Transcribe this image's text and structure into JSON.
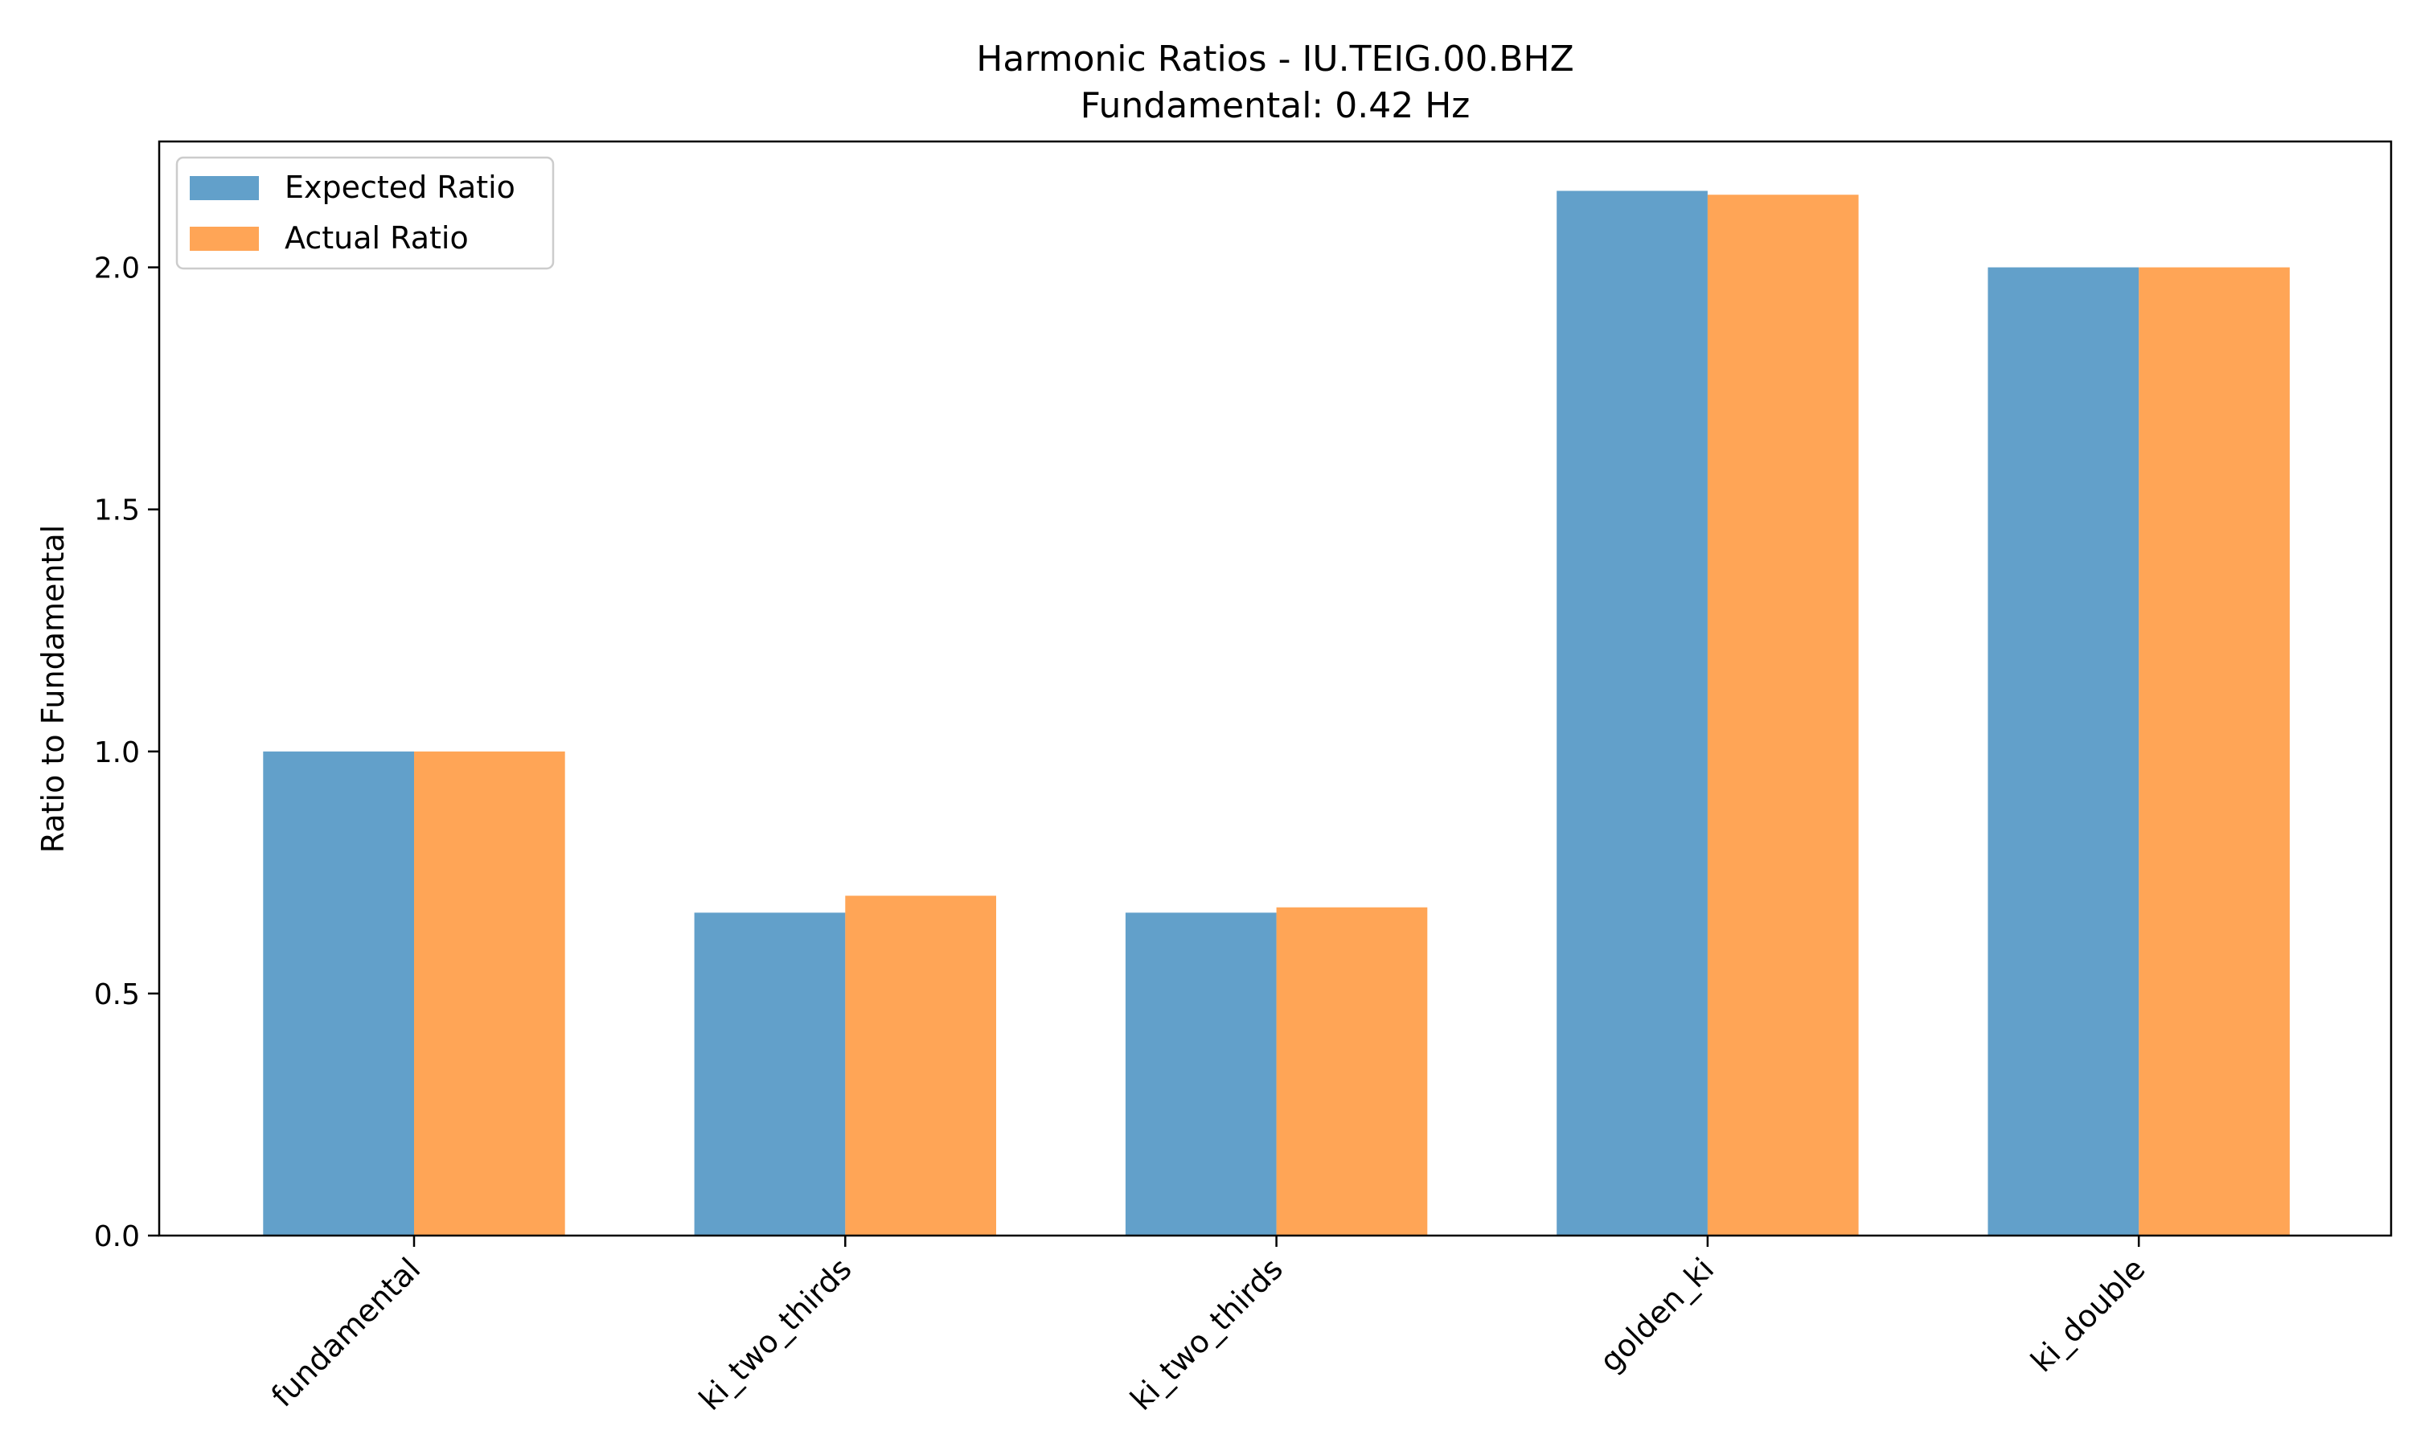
{
  "chart_data": {
    "type": "bar",
    "title": "Harmonic Ratios - IU.TEIG.00.BHZ",
    "subtitle": "Fundamental: 0.42 Hz",
    "xlabel": "",
    "ylabel": "Ratio to Fundamental",
    "categories": [
      "fundamental",
      "ki_two_thirds",
      "ki_two_thirds",
      "golden_ki",
      "ki_double"
    ],
    "series": [
      {
        "name": "Expected Ratio",
        "color": "#1f77b4",
        "values": [
          1.0,
          0.667,
          0.667,
          2.158,
          2.0
        ]
      },
      {
        "name": "Actual Ratio",
        "color": "#ff7f0e",
        "values": [
          1.0,
          0.702,
          0.678,
          2.15,
          2.0
        ]
      }
    ],
    "ylim": [
      0,
      2.26
    ],
    "yticks": [
      0.0,
      0.5,
      1.0,
      1.5,
      2.0
    ],
    "ytick_labels": [
      "0.0",
      "0.5",
      "1.0",
      "1.5",
      "2.0"
    ],
    "grid": false,
    "legend": "top-left",
    "bar_opacity": 0.7
  }
}
